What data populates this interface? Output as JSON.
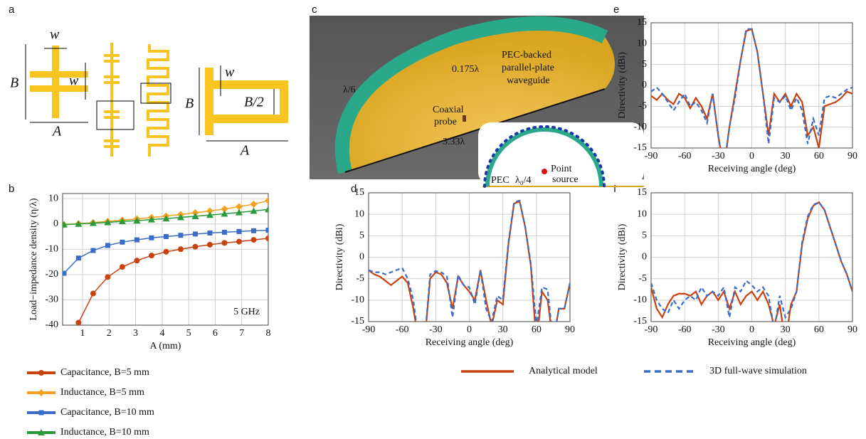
{
  "figure": {
    "panel_letters": [
      "a",
      "b",
      "c",
      "d",
      "e",
      "f"
    ],
    "panel_a_labels": [
      "w",
      "w",
      "B",
      "A",
      "w",
      "B",
      "B/2",
      "A"
    ],
    "panel_c_labels": {
      "edge": "λ/6",
      "width": "0.175λ",
      "waveguide": [
        "PEC-backed",
        "parallel-plate",
        "waveguide"
      ],
      "probe": [
        "Coaxial",
        "probe"
      ],
      "length": "3.33λ",
      "pec": "PEC",
      "gap": "λ₀/4",
      "source": [
        "Point",
        "source"
      ]
    }
  },
  "chart_data": [
    {
      "type": "line",
      "xlabel": "A (mm)",
      "ylabel": "Load−impedance  density (η/λ)",
      "annotation": "5 GHz",
      "x": [
        0.3,
        0.85,
        1.4,
        1.95,
        2.5,
        3.05,
        3.6,
        4.15,
        4.7,
        5.25,
        5.8,
        6.35,
        6.9,
        7.45,
        8.0
      ],
      "xlim": [
        0.25,
        8
      ],
      "xticks": [
        1,
        2,
        3,
        4,
        5,
        6,
        7,
        8
      ],
      "ylim": [
        -40,
        12
      ],
      "yticks": [
        -40,
        -30,
        -20,
        -10,
        0,
        10
      ],
      "grid": true,
      "series": [
        {
          "name": "Capacitance, B=5 mm",
          "color": "#c8410f",
          "marker": "circle",
          "values": [
            null,
            -39,
            -27.5,
            -21,
            -17,
            -14.5,
            -12.5,
            -11,
            -10,
            -9,
            -8.2,
            -7.5,
            -7,
            -6.3,
            -5.7
          ]
        },
        {
          "name": "Inductance, B=5 mm",
          "color": "#f5a020",
          "marker": "diamond",
          "values": [
            -0.3,
            0.1,
            0.5,
            1,
            1.5,
            2,
            2.5,
            3.1,
            3.7,
            4.4,
            5.1,
            5.9,
            6.8,
            7.8,
            9.2
          ]
        },
        {
          "name": "Capacitance, B=10 mm",
          "color": "#3a6cc8",
          "marker": "square",
          "values": [
            -19.5,
            -13.5,
            -10.5,
            -8.5,
            -7.2,
            -6.3,
            -5.5,
            -5,
            -4.5,
            -4,
            -3.6,
            -3.3,
            -3,
            -2.7,
            -2.5
          ]
        },
        {
          "name": "Inductance, B=10 mm",
          "color": "#2a9a3a",
          "marker": "triangle",
          "values": [
            -0.3,
            0,
            0.3,
            0.6,
            1,
            1.3,
            1.7,
            2.1,
            2.6,
            3,
            3.5,
            4,
            4.5,
            5.1,
            5.7
          ]
        }
      ]
    },
    {
      "type": "line",
      "xlabel": "Receiving angle (deg)",
      "ylabel": "Directivity (dBi)",
      "x": [
        -90,
        -85,
        -80,
        -75,
        -70,
        -65,
        -60,
        -55,
        -50,
        -45,
        -40,
        -35,
        -30,
        -25,
        -20,
        -15,
        -10,
        -5,
        0,
        5,
        10,
        15,
        20,
        25,
        30,
        35,
        40,
        45,
        50,
        55,
        60,
        65,
        70,
        75,
        80,
        85,
        90
      ],
      "xlim": [
        -90,
        90
      ],
      "xticks": [
        -90,
        -60,
        -30,
        0,
        30,
        60,
        90
      ],
      "ylim": [
        -15,
        15
      ],
      "yticks": [
        -15,
        -10,
        -5,
        0,
        5,
        10,
        15
      ],
      "grid": true,
      "series": [
        {
          "name": "Analytical model",
          "color": "#c8410f",
          "line_style": "solid",
          "values": [
            -3,
            -4,
            -4.5,
            -5.5,
            -6.5,
            -5.5,
            -4.5,
            -6,
            -12,
            -20,
            -20,
            -5,
            -3.5,
            -4,
            -6,
            -12,
            -4.5,
            -6.5,
            -8,
            -10,
            -3,
            -10,
            -16,
            -10,
            -11,
            3,
            12.5,
            13,
            7,
            -2,
            -20,
            -8,
            -10,
            -20,
            -12,
            -12,
            -6
          ]
        },
        {
          "name": "3D full-wave simulation",
          "color": "#3a6cc8",
          "line_style": "dashed",
          "values": [
            -3,
            -3.5,
            -3.5,
            -4,
            -3.5,
            -3,
            -2.5,
            -5,
            -10,
            -20,
            -20,
            -4,
            -3.2,
            -3.5,
            -4.5,
            -14,
            -4.2,
            -6.5,
            -7,
            -11,
            -3,
            -12,
            -15,
            -9,
            -10,
            3.5,
            12.8,
            13.2,
            7,
            -1.5,
            -16,
            -7,
            -7.5,
            -20,
            -12,
            -12,
            -6
          ]
        }
      ]
    },
    {
      "type": "line",
      "xlabel": "Receiving angle (deg)",
      "ylabel": "Directivity (dBi)",
      "x": [
        -90,
        -85,
        -80,
        -75,
        -70,
        -65,
        -60,
        -55,
        -50,
        -45,
        -40,
        -35,
        -30,
        -25,
        -20,
        -15,
        -10,
        -5,
        0,
        5,
        10,
        15,
        20,
        25,
        30,
        35,
        40,
        45,
        50,
        55,
        60,
        65,
        70,
        75,
        80,
        85,
        90
      ],
      "xlim": [
        -90,
        90
      ],
      "xticks": [
        -90,
        -60,
        -30,
        0,
        30,
        60,
        90
      ],
      "ylim": [
        -15,
        15
      ],
      "yticks": [
        -15,
        -10,
        -5,
        0,
        5,
        10,
        15
      ],
      "grid": true,
      "series": [
        {
          "name": "Analytical model",
          "color": "#c8410f",
          "line_style": "solid",
          "values": [
            -2.5,
            -3.5,
            -2,
            -3.5,
            -4.5,
            -2,
            -3,
            -5.5,
            -3,
            -5,
            -8,
            -2,
            -12,
            -20,
            -10,
            -2,
            6,
            13,
            13.5,
            8,
            -2,
            -12,
            -2,
            -4,
            -2,
            -5,
            -2,
            -4,
            -12,
            -10,
            -15,
            -5,
            -4.5,
            -4,
            -3,
            -1.5,
            -2
          ]
        },
        {
          "name": "3D full-wave simulation",
          "color": "#3a6cc8",
          "line_style": "dashed",
          "values": [
            -1.5,
            -0.5,
            -2,
            -4,
            -6,
            -4,
            -2,
            -5,
            -4,
            -6,
            -9,
            -2,
            -12,
            -20,
            -10,
            -3,
            6,
            13.5,
            13.5,
            8,
            -2,
            -14,
            -3,
            -4,
            -2.5,
            -6,
            -3,
            -6,
            -14,
            -8,
            -12,
            -3,
            -2.5,
            -3,
            -2,
            -1,
            -0.5
          ]
        }
      ]
    },
    {
      "type": "line",
      "xlabel": "Receiving angle (deg)",
      "ylabel": "Directivity (dBi)",
      "x": [
        -90,
        -85,
        -80,
        -75,
        -70,
        -65,
        -60,
        -55,
        -50,
        -45,
        -40,
        -35,
        -30,
        -25,
        -20,
        -15,
        -10,
        -5,
        0,
        5,
        10,
        15,
        20,
        25,
        30,
        35,
        40,
        45,
        50,
        55,
        60,
        65,
        70,
        75,
        80,
        85,
        90
      ],
      "xlim": [
        -90,
        90
      ],
      "xticks": [
        -90,
        -60,
        -30,
        0,
        30,
        60,
        90
      ],
      "ylim": [
        -15,
        15
      ],
      "yticks": [
        -15,
        -10,
        -5,
        0,
        5,
        10,
        15
      ],
      "grid": true,
      "series": [
        {
          "name": "Analytical model",
          "color": "#c8410f",
          "line_style": "solid",
          "values": [
            -7,
            -12,
            -14,
            -11,
            -9,
            -8.5,
            -8.5,
            -9,
            -8,
            -11,
            -9,
            -8,
            -10,
            -8,
            -12,
            -8,
            -11,
            -9,
            -8,
            -10,
            -8,
            -11,
            -16,
            -11,
            -20,
            -11,
            -8,
            3,
            9,
            12,
            12.8,
            11,
            7,
            3,
            -1,
            -4,
            -8
          ]
        },
        {
          "name": "3D full-wave simulation",
          "color": "#3a6cc8",
          "line_style": "dashed",
          "values": [
            -6,
            -10,
            -12,
            -13,
            -10,
            -12,
            -10,
            -9,
            -10,
            -7,
            -9,
            -8,
            -9,
            -7,
            -14,
            -7,
            -8,
            -5.5,
            -6.5,
            -8,
            -7,
            -9,
            -17,
            -9,
            -14,
            -12,
            -8,
            3.5,
            9.5,
            12.2,
            12.8,
            11,
            7,
            3,
            -1,
            -4,
            -8
          ]
        }
      ]
    }
  ]
}
